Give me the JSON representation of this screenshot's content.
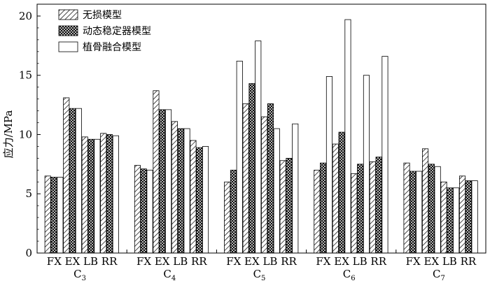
{
  "chart_data": {
    "type": "bar",
    "ylabel": "应力/MPa",
    "ylim": [
      0,
      21
    ],
    "yticks": [
      0,
      5,
      10,
      15,
      20
    ],
    "subcategories": [
      "FX",
      "EX",
      "LB",
      "RR"
    ],
    "groups": [
      {
        "base": "C",
        "sub": "3"
      },
      {
        "base": "C",
        "sub": "4"
      },
      {
        "base": "C",
        "sub": "5"
      },
      {
        "base": "C",
        "sub": "6"
      },
      {
        "base": "C",
        "sub": "7"
      }
    ],
    "series": [
      {
        "name": "无损模型",
        "pattern": "diagonal-hatch",
        "values": [
          [
            6.5,
            13.1,
            9.8,
            10.1
          ],
          [
            7.4,
            13.7,
            11.1,
            9.5
          ],
          [
            6.0,
            12.6,
            11.5,
            7.8
          ],
          [
            7.0,
            9.2,
            6.7,
            7.7
          ],
          [
            7.6,
            8.8,
            6.0,
            6.5
          ]
        ]
      },
      {
        "name": "动态稳定器模型",
        "pattern": "cross-hatch",
        "values": [
          [
            6.4,
            12.2,
            9.6,
            10.0
          ],
          [
            7.1,
            12.1,
            10.5,
            8.9
          ],
          [
            7.0,
            14.3,
            12.6,
            8.0
          ],
          [
            7.6,
            10.2,
            7.5,
            8.1
          ],
          [
            6.9,
            7.5,
            5.5,
            6.1
          ]
        ]
      },
      {
        "name": "植骨融合模型",
        "pattern": "white",
        "values": [
          [
            6.4,
            12.2,
            9.6,
            9.9
          ],
          [
            7.0,
            12.1,
            10.5,
            9.0
          ],
          [
            16.2,
            17.9,
            10.5,
            10.9
          ],
          [
            14.9,
            19.7,
            15.0,
            16.6
          ],
          [
            6.9,
            7.3,
            5.5,
            6.1
          ]
        ]
      }
    ],
    "legend_position": "top-left",
    "grid": false
  }
}
